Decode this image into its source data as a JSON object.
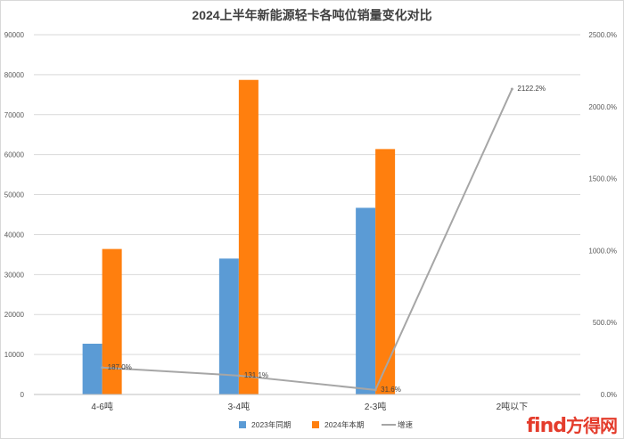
{
  "chart_data": {
    "type": "bar",
    "title": "2024上半年新能源轻卡各吨位销量变化对比",
    "categories": [
      "4-6吨",
      "3-4吨",
      "2-3吨",
      "2吨以下"
    ],
    "series": [
      {
        "name": "2023年同期",
        "type": "bar",
        "axis": "left",
        "color": "#5b9bd5",
        "values": [
          12700,
          34000,
          46700,
          null
        ]
      },
      {
        "name": "2024年本期",
        "type": "bar",
        "axis": "left",
        "color": "#ff7f0e",
        "values": [
          36400,
          78700,
          61400,
          null
        ]
      },
      {
        "name": "增速",
        "type": "line",
        "axis": "right",
        "color": "#a6a6a6",
        "values": [
          187.0,
          131.1,
          31.6,
          2122.2
        ],
        "labels": [
          "187.0%",
          "131.1%",
          "31.6%",
          "2122.2%"
        ]
      }
    ],
    "y_left": {
      "min": 0,
      "max": 90000,
      "step": 10000,
      "tick_labels": [
        "0",
        "10000",
        "20000",
        "30000",
        "40000",
        "50000",
        "60000",
        "70000",
        "80000",
        "90000"
      ]
    },
    "y_right": {
      "min": 0,
      "max": 2500,
      "step": 500,
      "tick_labels": [
        "0.0%",
        "500.0%",
        "1000.0%",
        "1500.0%",
        "2000.0%",
        "2500.0%"
      ]
    },
    "grid": true,
    "legend": "bottom"
  },
  "watermark": {
    "text_a": "find",
    "text_b": "方得网"
  }
}
